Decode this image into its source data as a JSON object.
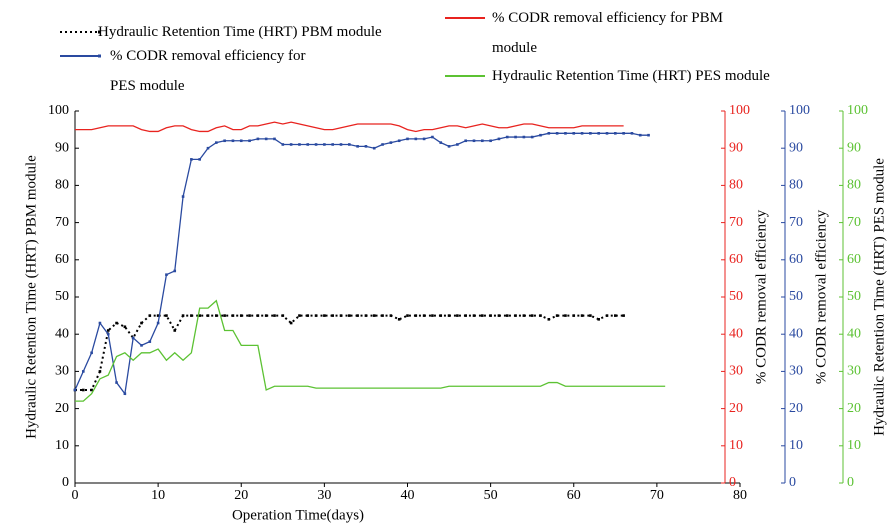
{
  "chart_data": {
    "type": "line",
    "x_label": "Operation Time(days)",
    "x": [
      0,
      1,
      2,
      3,
      4,
      5,
      6,
      7,
      8,
      9,
      10,
      11,
      12,
      13,
      14,
      15,
      16,
      17,
      18,
      19,
      20,
      21,
      22,
      23,
      24,
      25,
      26,
      27,
      28,
      29,
      30,
      31,
      32,
      33,
      34,
      35,
      36,
      37,
      38,
      39,
      40,
      41,
      42,
      43,
      44,
      45,
      46,
      47,
      48,
      49,
      50,
      51,
      52,
      53,
      54,
      55,
      56,
      57,
      58,
      59,
      60,
      61,
      62,
      63,
      64,
      65,
      66,
      67,
      68,
      69,
      70,
      71
    ],
    "xlim": [
      0,
      80
    ],
    "xticks": [
      0,
      10,
      20,
      30,
      40,
      50,
      60,
      70,
      80
    ],
    "axes": [
      {
        "label": "Hydraulic Retention Time (HRT) PBM module",
        "color": "#000000",
        "lim": [
          0,
          100
        ],
        "ticks": [
          0,
          10,
          20,
          30,
          40,
          50,
          60,
          70,
          80,
          90,
          100
        ]
      },
      {
        "label": "% CODR removal efficiency",
        "color": "#e8231f",
        "lim": [
          0,
          100
        ],
        "ticks": [
          0,
          10,
          20,
          30,
          40,
          50,
          60,
          70,
          80,
          90,
          100
        ]
      },
      {
        "label": "% CODR removal efficiency",
        "color": "#2a4aa0",
        "lim": [
          0,
          100
        ],
        "ticks": [
          0,
          10,
          20,
          30,
          40,
          50,
          60,
          70,
          80,
          90,
          100
        ]
      },
      {
        "label": "Hydraulic Retention Time (HRT) PES module",
        "color": "#5cc233",
        "lim": [
          0,
          100
        ],
        "ticks": [
          0,
          10,
          20,
          30,
          40,
          50,
          60,
          70,
          80,
          90,
          100
        ]
      }
    ],
    "series": [
      {
        "name": "Hydraulic Retention Time (HRT) PBM module",
        "color": "#000000",
        "axis": 0,
        "style": "dotted",
        "markers": true,
        "values": [
          25,
          25,
          25,
          30,
          41,
          43,
          42,
          39,
          43,
          45,
          45,
          45,
          41,
          45,
          45,
          45,
          45,
          45,
          45,
          45,
          45,
          45,
          45,
          45,
          45,
          45,
          43,
          45,
          45,
          45,
          45,
          45,
          45,
          45,
          45,
          45,
          45,
          45,
          45,
          44,
          45,
          45,
          45,
          45,
          45,
          45,
          45,
          45,
          45,
          45,
          45,
          45,
          45,
          45,
          45,
          45,
          45,
          44,
          45,
          45,
          45,
          45,
          45,
          44,
          45,
          45,
          45,
          null,
          null,
          null,
          null,
          null
        ]
      },
      {
        "name": "% CODR removal efficiency for PES module",
        "color": "#2a4aa0",
        "axis": 2,
        "style": "solid",
        "markers": true,
        "values": [
          25,
          30,
          35,
          43,
          40,
          27,
          24,
          39,
          37,
          38,
          43,
          56,
          57,
          77,
          87,
          87,
          90,
          91.5,
          92,
          92,
          92,
          92,
          92.5,
          92.5,
          92.5,
          91,
          91,
          91,
          91,
          91,
          91,
          91,
          91,
          91,
          90.5,
          90.5,
          90,
          91,
          91.5,
          92,
          92.5,
          92.5,
          92.5,
          93,
          91.5,
          90.5,
          91,
          92,
          92,
          92,
          92,
          92.5,
          93,
          93,
          93,
          93,
          93.5,
          94,
          94,
          94,
          94,
          94,
          94,
          94,
          94,
          94,
          94,
          94,
          93.5,
          93.5,
          null,
          null
        ]
      },
      {
        "name": "% CODR removal efficiency for PBM module",
        "color": "#e8231f",
        "axis": 1,
        "style": "solid",
        "markers": false,
        "values": [
          95,
          95,
          95,
          95.5,
          96,
          96,
          96,
          96,
          95,
          94.5,
          94.5,
          95.5,
          96,
          96,
          95,
          94.5,
          94.5,
          95.5,
          96,
          95,
          95,
          96,
          96,
          96.5,
          97,
          96.5,
          97,
          96.5,
          96,
          95.5,
          95,
          95,
          95.5,
          96,
          96.5,
          96.5,
          96.5,
          96.5,
          96.5,
          96,
          95,
          94.5,
          95,
          95,
          95.5,
          96,
          96,
          95.5,
          96,
          96.5,
          96,
          95.5,
          95.5,
          96,
          96.5,
          96.5,
          96,
          95.5,
          95.5,
          95.5,
          95.5,
          96,
          96,
          96,
          96,
          96,
          96,
          null,
          null,
          null,
          null,
          null
        ]
      },
      {
        "name": "Hydraulic Retention Time (HRT) PES module",
        "color": "#5cc233",
        "axis": 3,
        "style": "solid",
        "markers": false,
        "values": [
          22,
          22,
          24,
          28,
          29,
          34,
          35,
          33,
          35,
          35,
          36,
          33,
          35,
          33,
          35,
          47,
          47,
          49,
          41,
          41,
          37,
          37,
          37,
          25,
          26,
          26,
          26,
          26,
          26,
          25.5,
          25.5,
          25.5,
          25.5,
          25.5,
          25.5,
          25.5,
          25.5,
          25.5,
          25.5,
          25.5,
          25.5,
          25.5,
          25.5,
          25.5,
          25.5,
          26,
          26,
          26,
          26,
          26,
          26,
          26,
          26,
          26,
          26,
          26,
          26,
          27,
          27,
          26,
          26,
          26,
          26,
          26,
          26,
          26,
          26,
          26,
          26,
          26,
          26,
          26
        ]
      }
    ]
  }
}
